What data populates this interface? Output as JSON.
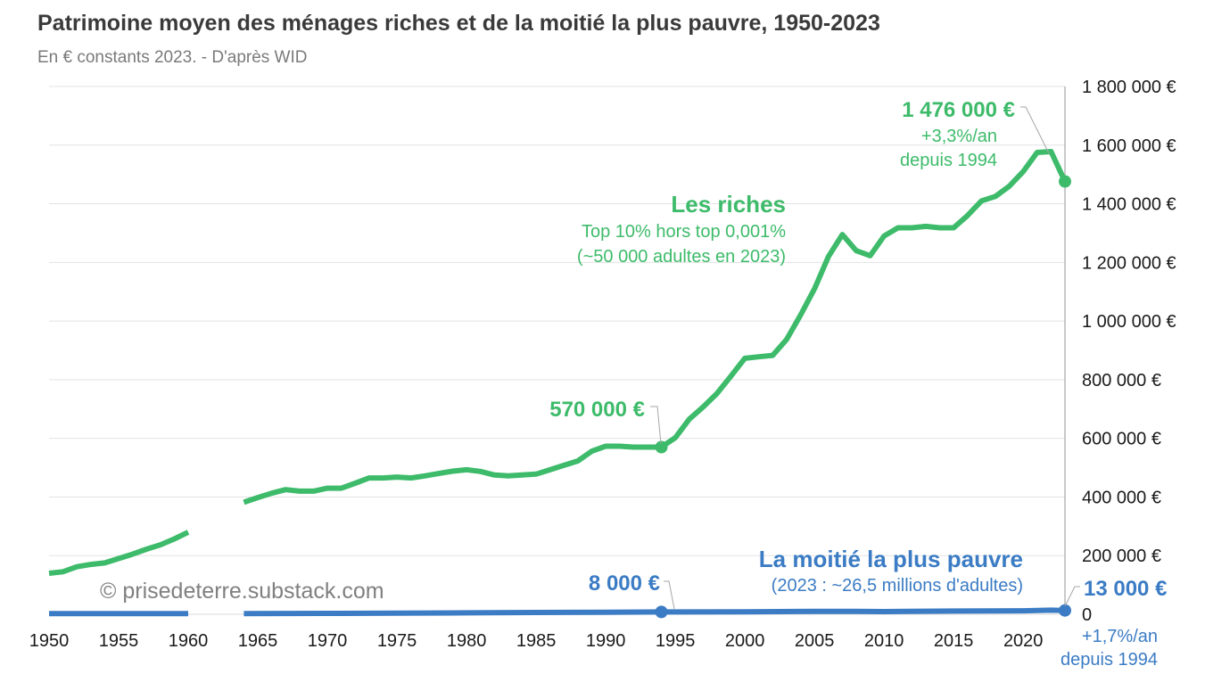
{
  "chart_data": {
    "type": "line",
    "title": "Patrimoine moyen des ménages riches et de la moitié la plus pauvre, 1950-2023",
    "subtitle": "En € constants 2023. - D'après WID",
    "xlabel": "",
    "ylabel": "",
    "xlim": [
      1950,
      2023
    ],
    "ylim": [
      0,
      1800000
    ],
    "x_ticks": [
      1950,
      1955,
      1960,
      1965,
      1970,
      1975,
      1980,
      1985,
      1990,
      1995,
      2000,
      2005,
      2010,
      2015,
      2020
    ],
    "x_tick_labels": [
      "1950",
      "1955",
      "1960",
      "1965",
      "1970",
      "1975",
      "1980",
      "1985",
      "1990",
      "1995",
      "2000",
      "2005",
      "2010",
      "2015",
      "2020"
    ],
    "y_ticks": [
      0,
      200000,
      400000,
      600000,
      800000,
      1000000,
      1200000,
      1400000,
      1600000,
      1800000
    ],
    "y_tick_labels": [
      "0",
      "200 000 €",
      "400 000 €",
      "600 000 €",
      "800 000 €",
      "1 000 000 €",
      "1 200 000 €",
      "1 400 000 €",
      "1 600 000 €",
      "1 800 000 €"
    ],
    "gridlines": true,
    "series": [
      {
        "name": "Les riches",
        "color": "#3dbb6a",
        "segments": [
          {
            "x": [
              1950,
              1951,
              1952,
              1953,
              1954,
              1955,
              1956,
              1957,
              1958,
              1959,
              1960
            ],
            "values": [
              140000,
              145000,
              162000,
              170000,
              175000,
              190000,
              205000,
              222000,
              237000,
              257000,
              280000
            ]
          },
          {
            "x": [
              1964,
              1965,
              1966,
              1967,
              1968,
              1969,
              1970,
              1971,
              1972,
              1973,
              1974,
              1975,
              1976,
              1977,
              1978,
              1979,
              1980,
              1981,
              1982,
              1983,
              1984,
              1985,
              1986,
              1987,
              1988,
              1989,
              1990,
              1991,
              1992,
              1993,
              1994,
              1995,
              1996,
              1997,
              1998,
              1999,
              2000,
              2001,
              2002,
              2003,
              2004,
              2005,
              2006,
              2007,
              2008,
              2009,
              2010,
              2011,
              2012,
              2013,
              2014,
              2015,
              2016,
              2017,
              2018,
              2019,
              2020,
              2021,
              2022,
              2023
            ],
            "values": [
              382000,
              398000,
              413000,
              425000,
              420000,
              420000,
              430000,
              430000,
              447000,
              465000,
              465000,
              468000,
              465000,
              472000,
              480000,
              488000,
              493000,
              487000,
              475000,
              472000,
              475000,
              478000,
              493000,
              508000,
              523000,
              556000,
              573000,
              573000,
              570000,
              570000,
              570000,
              602000,
              665000,
              707000,
              753000,
              812000,
              873000,
              878000,
              883000,
              937000,
              1020000,
              1110000,
              1220000,
              1295000,
              1240000,
              1223000,
              1290000,
              1318000,
              1318000,
              1323000,
              1318000,
              1318000,
              1360000,
              1410000,
              1425000,
              1460000,
              1510000,
              1575000,
              1578000,
              1476000
            ]
          }
        ],
        "label": "Les riches",
        "label_line1": "Top 10% hors top 0,001%",
        "label_line2": "(~50 000 adultes en 2023)",
        "annotations": [
          {
            "year": 1994,
            "value": 570000,
            "text": "570 000 €"
          },
          {
            "year": 2023,
            "value": 1476000,
            "text": "1 476 000 €",
            "growth": "+3,3%/an",
            "since": "depuis 1994"
          }
        ]
      },
      {
        "name": "La moitié la plus pauvre",
        "color": "#3b7cc4",
        "segments": [
          {
            "x": [
              1950,
              1955,
              1960
            ],
            "values": [
              2000,
              2000,
              2000
            ]
          },
          {
            "x": [
              1964,
              1970,
              1975,
              1980,
              1985,
              1990,
              1994,
              2000,
              2005,
              2008,
              2010,
              2015,
              2020,
              2022,
              2023
            ],
            "values": [
              2000,
              3000,
              4000,
              5000,
              6000,
              7000,
              8000,
              8500,
              10000,
              10000,
              9000,
              11000,
              12000,
              14000,
              13000
            ]
          }
        ],
        "label": "La moitié la plus pauvre",
        "label_line1": "(2023 : ~26,5 millions d'adultes)",
        "annotations": [
          {
            "year": 1994,
            "value": 8000,
            "text": "8 000 €"
          },
          {
            "year": 2023,
            "value": 13000,
            "text": "13 000 €",
            "growth": "+1,7%/an",
            "since": "depuis 1994"
          }
        ]
      }
    ]
  },
  "credit": "© prisedeterre.substack.com"
}
